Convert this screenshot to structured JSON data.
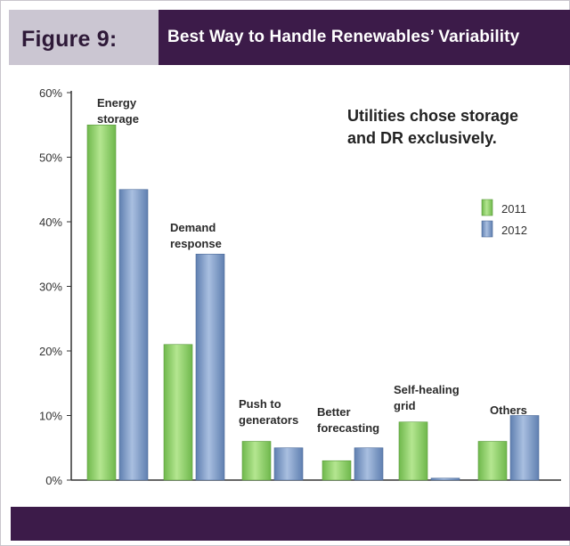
{
  "header": {
    "figure_number": "Figure 9:",
    "title": "Best Way to Handle Renewables’ Variability"
  },
  "colors": {
    "header_dark": "#3c1b49",
    "header_light": "#cbc6d2",
    "bar_2011": "#8fd06a",
    "bar_2012": "#7e9bc6"
  },
  "chart_data": {
    "type": "bar",
    "title": "Best Way to Handle Renewables’ Variability",
    "categories": [
      [
        "Energy",
        "storage"
      ],
      [
        "Demand",
        "response"
      ],
      [
        "Push to",
        "generators"
      ],
      [
        "Better",
        "forecasting"
      ],
      [
        "Self-healing",
        "grid"
      ],
      [
        "Others"
      ]
    ],
    "series": [
      {
        "name": "2011",
        "values": [
          55,
          21,
          6,
          3,
          9,
          6
        ]
      },
      {
        "name": "2012",
        "values": [
          45,
          35,
          5,
          5,
          0.3,
          10
        ]
      }
    ],
    "ylim": [
      0,
      60
    ],
    "yticks": [
      0,
      10,
      20,
      30,
      40,
      50,
      60
    ],
    "ytick_labels": [
      "0%",
      "10%",
      "20%",
      "30%",
      "40%",
      "50%",
      "60%"
    ],
    "annotation": [
      "Utilities chose storage",
      "and DR exclusively."
    ],
    "legend_position": "right",
    "grid": false
  }
}
